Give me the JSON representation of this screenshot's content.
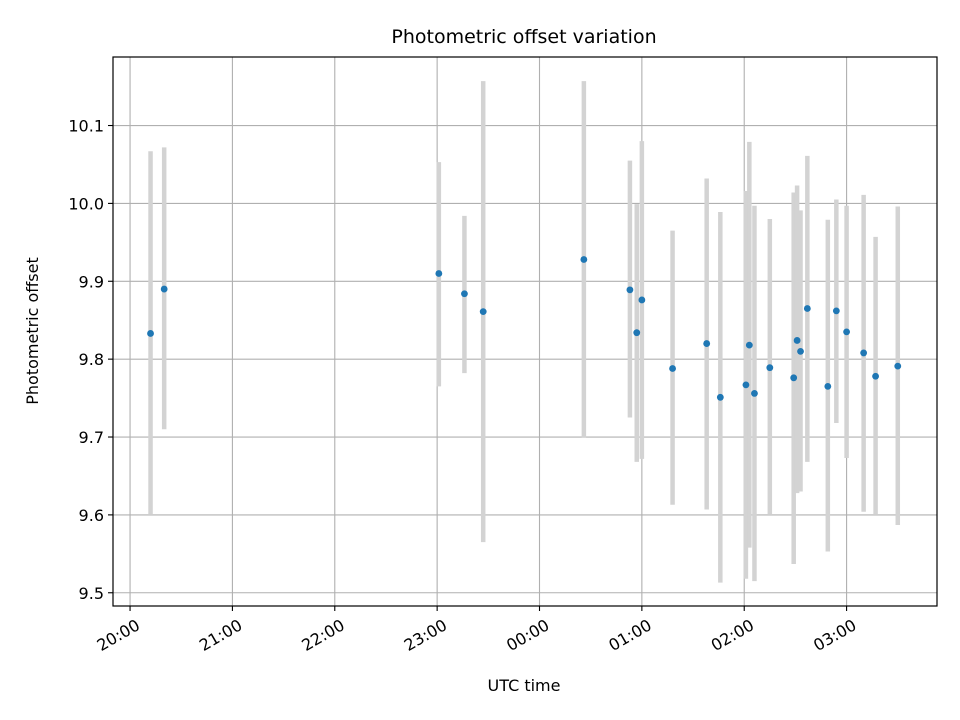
{
  "chart_data": {
    "type": "scatter",
    "title": "Photometric offset variation",
    "xlabel": "UTC time",
    "ylabel": "Photometric offset",
    "x_is_time": true,
    "xlim": [
      "19:50",
      "27:53"
    ],
    "ylim": [
      9.483,
      10.188
    ],
    "grid": true,
    "x_ticks": [
      "20:00",
      "21:00",
      "22:00",
      "23:00",
      "00:00",
      "01:00",
      "02:00",
      "03:00"
    ],
    "y_ticks": [
      "9.5",
      "9.6",
      "9.7",
      "9.8",
      "9.9",
      "10.0",
      "10.1"
    ],
    "point_color": "#1f77b4",
    "errorbar_color": "#d3d3d3",
    "points": [
      {
        "time": "20:12",
        "y": 9.833,
        "ylow": 9.6,
        "yhigh": 10.067
      },
      {
        "time": "20:20",
        "y": 9.89,
        "ylow": 9.71,
        "yhigh": 10.072
      },
      {
        "time": "23:01",
        "y": 9.91,
        "ylow": 9.765,
        "yhigh": 10.053
      },
      {
        "time": "23:16",
        "y": 9.884,
        "ylow": 9.782,
        "yhigh": 9.984
      },
      {
        "time": "23:27",
        "y": 9.861,
        "ylow": 9.565,
        "yhigh": 10.157
      },
      {
        "time": "00:26",
        "y": 9.928,
        "ylow": 9.699,
        "yhigh": 10.157
      },
      {
        "time": "00:53",
        "y": 9.889,
        "ylow": 9.725,
        "yhigh": 10.055
      },
      {
        "time": "00:57",
        "y": 9.834,
        "ylow": 9.668,
        "yhigh": 9.999
      },
      {
        "time": "01:00",
        "y": 9.876,
        "ylow": 9.672,
        "yhigh": 10.08
      },
      {
        "time": "01:18",
        "y": 9.788,
        "ylow": 9.613,
        "yhigh": 9.965
      },
      {
        "time": "01:38",
        "y": 9.82,
        "ylow": 9.607,
        "yhigh": 10.032
      },
      {
        "time": "01:46",
        "y": 9.751,
        "ylow": 9.513,
        "yhigh": 9.989
      },
      {
        "time": "02:01",
        "y": 9.767,
        "ylow": 9.518,
        "yhigh": 10.016
      },
      {
        "time": "02:03",
        "y": 9.818,
        "ylow": 9.558,
        "yhigh": 10.079
      },
      {
        "time": "02:06",
        "y": 9.756,
        "ylow": 9.515,
        "yhigh": 9.997
      },
      {
        "time": "02:15",
        "y": 9.789,
        "ylow": 9.6,
        "yhigh": 9.98
      },
      {
        "time": "02:29",
        "y": 9.776,
        "ylow": 9.537,
        "yhigh": 10.014
      },
      {
        "time": "02:31",
        "y": 9.824,
        "ylow": 9.628,
        "yhigh": 10.023
      },
      {
        "time": "02:33",
        "y": 9.81,
        "ylow": 9.63,
        "yhigh": 9.991
      },
      {
        "time": "02:37",
        "y": 9.865,
        "ylow": 9.668,
        "yhigh": 10.061
      },
      {
        "time": "02:49",
        "y": 9.765,
        "ylow": 9.553,
        "yhigh": 9.979
      },
      {
        "time": "02:54",
        "y": 9.862,
        "ylow": 9.718,
        "yhigh": 10.005
      },
      {
        "time": "03:00",
        "y": 9.835,
        "ylow": 9.673,
        "yhigh": 9.997
      },
      {
        "time": "03:10",
        "y": 9.808,
        "ylow": 9.604,
        "yhigh": 10.011
      },
      {
        "time": "03:17",
        "y": 9.778,
        "ylow": 9.6,
        "yhigh": 9.957
      },
      {
        "time": "03:30",
        "y": 9.791,
        "ylow": 9.587,
        "yhigh": 9.996
      }
    ]
  }
}
